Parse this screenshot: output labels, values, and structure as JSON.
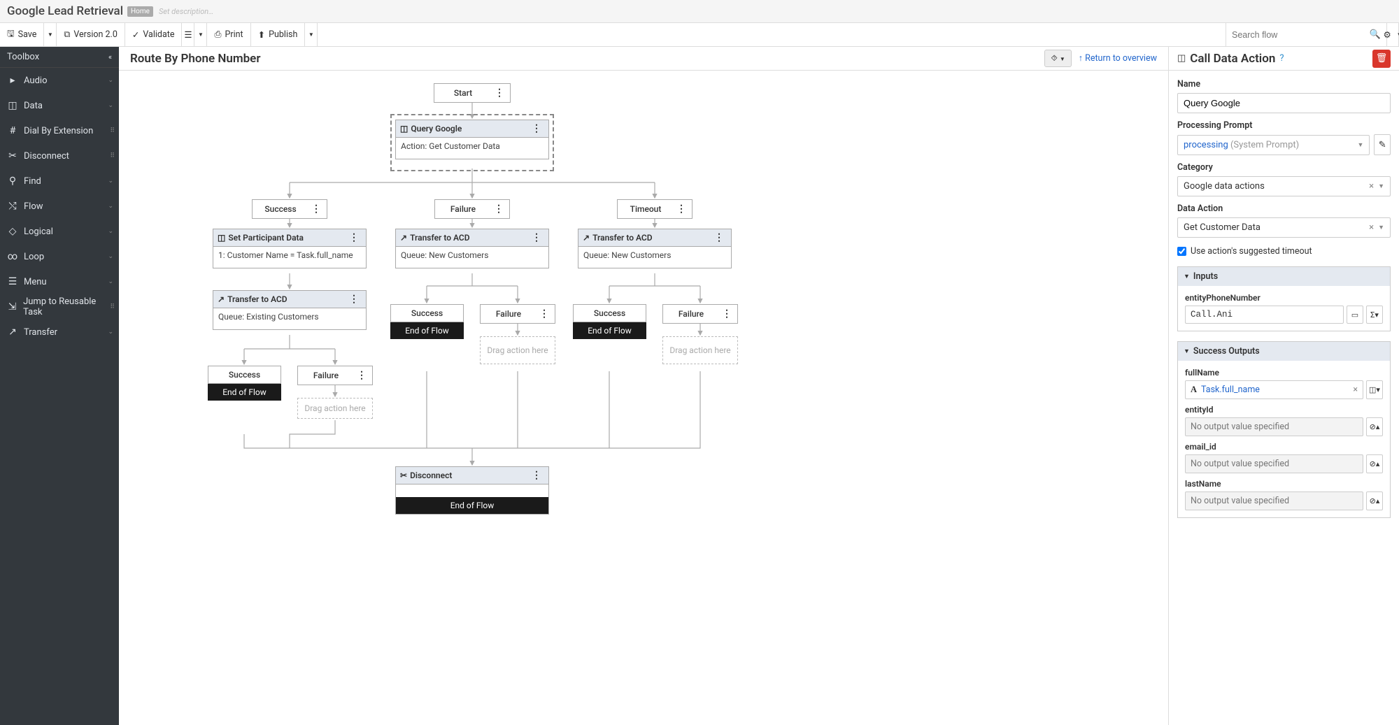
{
  "header": {
    "title": "Google Lead Retrieval",
    "badge": "Home",
    "desc_placeholder": "Set description…"
  },
  "toolbar": {
    "save": "Save",
    "version": "Version 2.0",
    "validate": "Validate",
    "print": "Print",
    "publish": "Publish",
    "search_placeholder": "Search flow"
  },
  "sidebar": {
    "head": "Toolbox",
    "items": [
      {
        "icon": "▸",
        "label": "Audio",
        "type": "expand"
      },
      {
        "icon": "◫",
        "label": "Data",
        "type": "expand"
      },
      {
        "icon": "#",
        "label": "Dial By Extension",
        "type": "grip"
      },
      {
        "icon": "✂",
        "label": "Disconnect",
        "type": "grip"
      },
      {
        "icon": "⚲",
        "label": "Find",
        "type": "expand"
      },
      {
        "icon": "⤭",
        "label": "Flow",
        "type": "expand"
      },
      {
        "icon": "◇",
        "label": "Logical",
        "type": "expand"
      },
      {
        "icon": "∞",
        "label": "Loop",
        "type": "expand"
      },
      {
        "icon": "☰",
        "label": "Menu",
        "type": "expand"
      },
      {
        "icon": "⇲",
        "label": "Jump to Reusable Task",
        "type": "grip"
      },
      {
        "icon": "↗",
        "label": "Transfer",
        "type": "expand"
      }
    ]
  },
  "canvas": {
    "title": "Route By Phone Number",
    "tree_btn": "⯯",
    "return_link": "Return to overview",
    "nodes": {
      "start": {
        "label": "Start"
      },
      "query": {
        "title": "Query Google",
        "body": "Action: Get Customer Data",
        "icon": "◫"
      },
      "branch_success": {
        "label": "Success"
      },
      "branch_failure": {
        "label": "Failure"
      },
      "branch_timeout": {
        "label": "Timeout"
      },
      "set_part": {
        "title": "Set Participant Data",
        "body": "1: Customer Name = Task.full_name",
        "icon": "◫"
      },
      "xfer_acd_f": {
        "title": "Transfer to ACD",
        "body": "Queue: New Customers",
        "icon": "↗"
      },
      "xfer_acd_t": {
        "title": "Transfer to ACD",
        "body": "Queue: New Customers",
        "icon": "↗"
      },
      "xfer_acd_s": {
        "title": "Transfer to ACD",
        "body": "Queue: Existing Customers",
        "icon": "↗"
      },
      "success2": {
        "label": "Success"
      },
      "failure2": {
        "label": "Failure"
      },
      "success3": {
        "label": "Success"
      },
      "failure3": {
        "label": "Failure"
      },
      "success4": {
        "label": "Success"
      },
      "failure4": {
        "label": "Failure"
      },
      "endflow": "End of Flow",
      "drag": "Drag action here",
      "disconnect": {
        "title": "Disconnect",
        "icon": "✂"
      }
    }
  },
  "rpanel": {
    "title": "Call Data Action",
    "icon": "◫",
    "name_label": "Name",
    "name_value": "Query Google",
    "proc_label": "Processing Prompt",
    "proc_value": "processing",
    "proc_suffix": "(System Prompt)",
    "cat_label": "Category",
    "cat_value": "Google data actions",
    "da_label": "Data Action",
    "da_value": "Get Customer Data",
    "timeout_check": "Use action's suggested timeout",
    "inputs_head": "Inputs",
    "input1_label": "entityPhoneNumber",
    "input1_value": "Call.Ani",
    "outputs_head": "Success Outputs",
    "out1_label": "fullName",
    "out1_value": "Task.full_name",
    "out2_label": "entityId",
    "out_empty": "No output value specified",
    "out3_label": "email_id",
    "out4_label": "lastName"
  }
}
